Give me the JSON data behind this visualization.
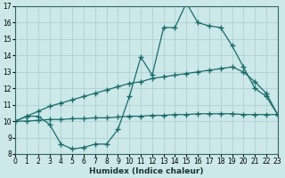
{
  "xlabel": "Humidex (Indice chaleur)",
  "bg_color": "#cce8e8",
  "line_color": "#1a6b6b",
  "grid_color": "#aacccc",
  "xmin": 0,
  "xmax": 23,
  "ymin": 8,
  "ymax": 17,
  "line1_x": [
    0,
    1,
    2,
    3,
    4,
    5,
    6,
    7,
    8,
    9,
    10,
    11,
    12,
    13,
    14,
    15,
    16,
    17,
    18,
    19,
    20,
    21,
    22,
    23
  ],
  "line1_y": [
    10.0,
    10.3,
    10.3,
    9.8,
    8.6,
    8.3,
    8.4,
    8.6,
    8.6,
    9.5,
    11.5,
    13.9,
    12.8,
    15.7,
    15.7,
    17.2,
    16.0,
    15.8,
    15.7,
    14.6,
    13.3,
    12.0,
    11.5,
    10.4
  ],
  "line2_x": [
    0,
    1,
    2,
    3,
    4,
    5,
    6,
    7,
    8,
    9,
    10,
    11,
    12,
    13,
    14,
    15,
    16,
    17,
    18,
    19,
    20,
    21,
    22,
    23
  ],
  "line2_y": [
    10.0,
    10.3,
    10.6,
    10.9,
    11.1,
    11.3,
    11.5,
    11.7,
    11.9,
    12.1,
    12.3,
    12.4,
    12.6,
    12.7,
    12.8,
    12.9,
    13.0,
    13.1,
    13.2,
    13.3,
    13.0,
    12.4,
    11.7,
    10.4
  ],
  "line3_x": [
    0,
    1,
    2,
    3,
    4,
    5,
    6,
    7,
    8,
    9,
    10,
    11,
    12,
    13,
    14,
    15,
    16,
    17,
    18,
    19,
    20,
    21,
    22,
    23
  ],
  "line3_y": [
    10.0,
    10.0,
    10.05,
    10.1,
    10.1,
    10.15,
    10.15,
    10.2,
    10.2,
    10.25,
    10.3,
    10.3,
    10.35,
    10.35,
    10.4,
    10.4,
    10.45,
    10.45,
    10.45,
    10.45,
    10.4,
    10.4,
    10.4,
    10.4
  ]
}
